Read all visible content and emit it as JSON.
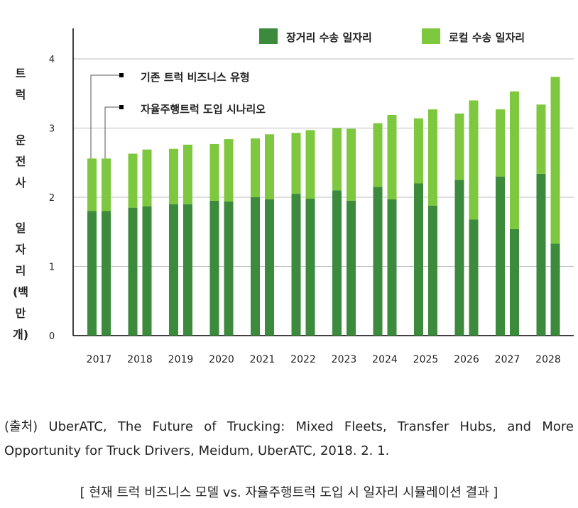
{
  "chart_data": {
    "type": "bar",
    "categories": [
      "2017",
      "2018",
      "2019",
      "2020",
      "2021",
      "2022",
      "2023",
      "2024",
      "2025",
      "2026",
      "2027",
      "2028"
    ],
    "series": [
      {
        "name": "장거리 수송 일자리",
        "color": "#3c8a3c",
        "existing": [
          1.8,
          1.85,
          1.9,
          1.95,
          2.0,
          2.05,
          2.1,
          2.15,
          2.2,
          2.25,
          2.3,
          2.34
        ],
        "autonomous": [
          1.8,
          1.87,
          1.9,
          1.94,
          1.97,
          1.98,
          1.95,
          1.97,
          1.88,
          1.68,
          1.54,
          1.33
        ]
      },
      {
        "name": "로컬 수송 일자리",
        "color": "#7dc83e",
        "existing": [
          0.76,
          0.78,
          0.8,
          0.82,
          0.85,
          0.88,
          0.9,
          0.92,
          0.94,
          0.96,
          0.97,
          1.0
        ],
        "autonomous": [
          0.76,
          0.82,
          0.86,
          0.9,
          0.94,
          0.99,
          1.04,
          1.22,
          1.39,
          1.72,
          1.99,
          2.41
        ]
      }
    ],
    "bar_pair_labels": [
      "기존 트럭 비즈니스 유형",
      "자율주행트럭 도입 시나리오"
    ],
    "yticks": [
      "0",
      "1",
      "2",
      "3",
      "4"
    ],
    "ylim": [
      0,
      4.4
    ],
    "ylabel_chars": [
      "트",
      "럭",
      "",
      "운",
      "전",
      "사",
      "",
      "일",
      "자",
      "리",
      "(백",
      "만",
      "개)"
    ],
    "grid": true,
    "legend_position": "top-right"
  },
  "source_text": "(출처) UberATC, The Future of Trucking: Mixed Fleets, Transfer Hubs, and More Opportunity for Truck Drivers, Meidum, UberATC, 2018. 2. 1.",
  "caption": "[ 현재 트럭 비즈니스 모델 vs. 자율주행트럭 도입 시 일자리 시뮬레이션 결과 ]"
}
